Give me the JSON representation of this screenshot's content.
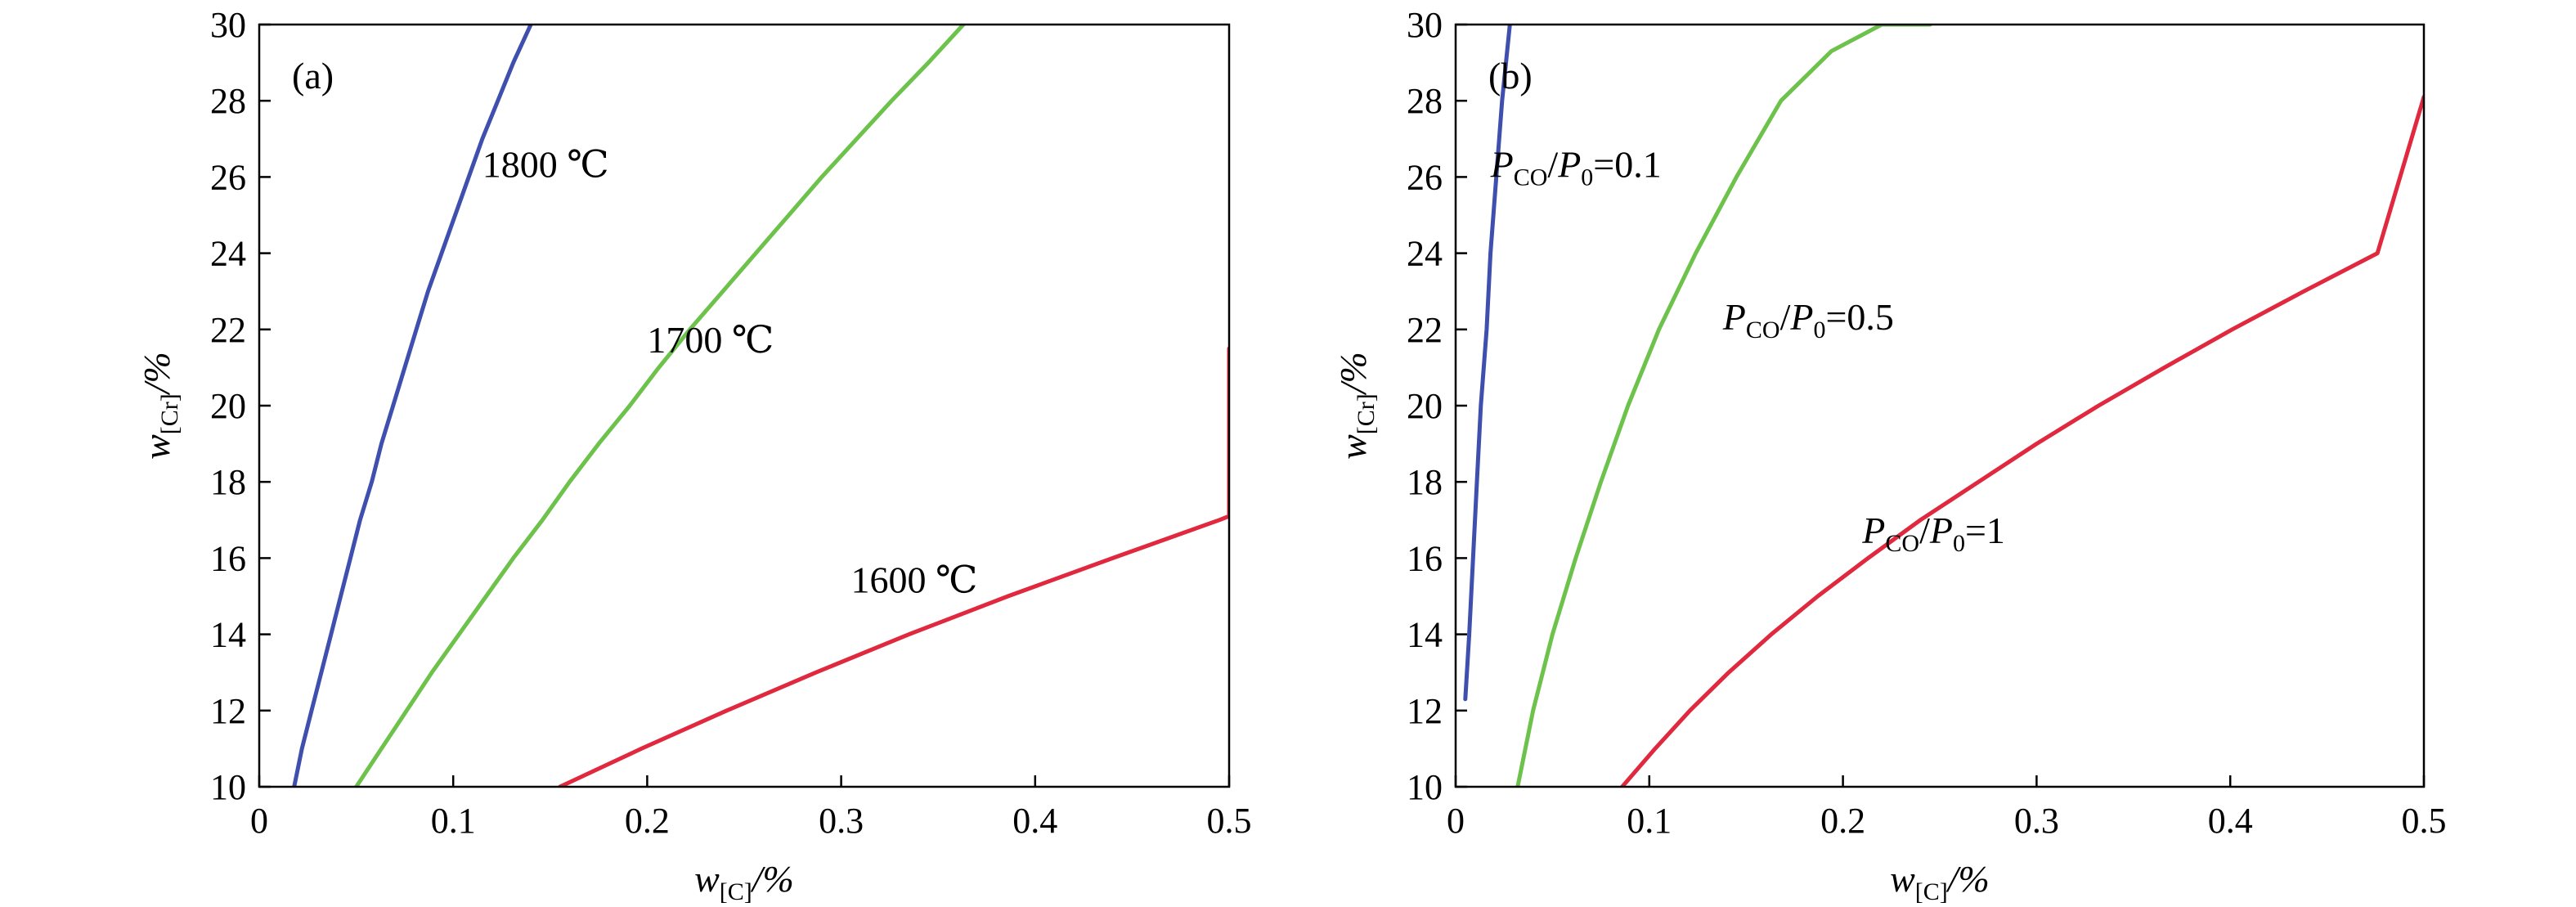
{
  "figure": {
    "colors": {
      "blue": "#3f4fae",
      "green": "#6cc24a",
      "red": "#e0283e"
    }
  },
  "chart_data": [
    {
      "type": "line",
      "panel_label": "(a)",
      "xlabel": {
        "main": "w",
        "sub": "[C]",
        "unit": "/%"
      },
      "ylabel": {
        "main": "w",
        "sub": "[Cr]",
        "unit": "/%"
      },
      "xlim": [
        0,
        0.5
      ],
      "ylim": [
        10,
        30
      ],
      "xticks": [
        0,
        0.1,
        0.2,
        0.3,
        0.4,
        0.5
      ],
      "xtick_labels": [
        "0",
        "0.1",
        "0.2",
        "0.3",
        "0.4",
        "0.5"
      ],
      "yticks": [
        10,
        12,
        14,
        16,
        18,
        20,
        22,
        24,
        26,
        28,
        30
      ],
      "ytick_labels": [
        "10",
        "12",
        "14",
        "16",
        "18",
        "20",
        "22",
        "24",
        "26",
        "28",
        "30"
      ],
      "grid": false,
      "series": [
        {
          "name": "1800 ℃",
          "color": "#3f4fae",
          "label_at": [
            0.115,
            26.0
          ],
          "points": [
            [
              0.018,
              10
            ],
            [
              0.022,
              11
            ],
            [
              0.027,
              12
            ],
            [
              0.032,
              13
            ],
            [
              0.037,
              14
            ],
            [
              0.042,
              15
            ],
            [
              0.047,
              16
            ],
            [
              0.052,
              17
            ],
            [
              0.058,
              18
            ],
            [
              0.063,
              19
            ],
            [
              0.069,
              20
            ],
            [
              0.075,
              21
            ],
            [
              0.081,
              22
            ],
            [
              0.087,
              23
            ],
            [
              0.094,
              24
            ],
            [
              0.101,
              25
            ],
            [
              0.108,
              26
            ],
            [
              0.115,
              27
            ],
            [
              0.123,
              28
            ],
            [
              0.131,
              29
            ],
            [
              0.14,
              30
            ]
          ]
        },
        {
          "name": "1700 ℃",
          "color": "#6cc24a",
          "label_at": [
            0.2,
            21.4
          ],
          "points": [
            [
              0.05,
              10
            ],
            [
              0.063,
              11
            ],
            [
              0.076,
              12
            ],
            [
              0.089,
              13
            ],
            [
              0.103,
              14
            ],
            [
              0.117,
              15
            ],
            [
              0.131,
              16
            ],
            [
              0.146,
              17
            ],
            [
              0.16,
              18
            ],
            [
              0.175,
              19
            ],
            [
              0.191,
              20
            ],
            [
              0.206,
              21
            ],
            [
              0.222,
              22
            ],
            [
              0.239,
              23
            ],
            [
              0.256,
              24
            ],
            [
              0.273,
              25
            ],
            [
              0.29,
              26
            ],
            [
              0.308,
              27
            ],
            [
              0.326,
              28
            ],
            [
              0.345,
              29
            ],
            [
              0.363,
              30
            ]
          ]
        },
        {
          "name": "1600 ℃",
          "color": "#e0283e",
          "label_at": [
            0.305,
            15.1
          ],
          "points": [
            [
              0.155,
              10
            ],
            [
              0.197,
              11
            ],
            [
              0.241,
              12
            ],
            [
              0.287,
              13
            ],
            [
              0.335,
              14
            ],
            [
              0.386,
              15
            ],
            [
              0.44,
              16
            ],
            [
              0.495,
              17
            ],
            [
              0.5,
              17.1
            ],
            [
              0.5,
              21.5
            ]
          ]
        }
      ]
    },
    {
      "type": "line",
      "panel_label": "(b)",
      "xlabel": {
        "main": "w",
        "sub": "[C]",
        "unit": "/%"
      },
      "ylabel": {
        "main": "w",
        "sub": "[Cr]",
        "unit": "/%"
      },
      "xlim": [
        0,
        0.5
      ],
      "ylim": [
        10,
        30
      ],
      "xticks": [
        0,
        0.1,
        0.2,
        0.3,
        0.4,
        0.5
      ],
      "xtick_labels": [
        "0",
        "0.1",
        "0.2",
        "0.3",
        "0.4",
        "0.5"
      ],
      "yticks": [
        10,
        12,
        14,
        16,
        18,
        20,
        22,
        24,
        26,
        28,
        30
      ],
      "ytick_labels": [
        "10",
        "12",
        "14",
        "16",
        "18",
        "20",
        "22",
        "24",
        "26",
        "28",
        "30"
      ],
      "grid": false,
      "series": [
        {
          "name": "P_CO/P_0=0.1",
          "label": {
            "p": "P",
            "sub1": "CO",
            "mid": "/P",
            "sub2": "0",
            "tail": "=0.1"
          },
          "color": "#3f4fae",
          "label_at": [
            0.018,
            26.0
          ],
          "points": [
            [
              0.005,
              12.3
            ],
            [
              0.007,
              14
            ],
            [
              0.009,
              16
            ],
            [
              0.011,
              18
            ],
            [
              0.013,
              20
            ],
            [
              0.016,
              22
            ],
            [
              0.018,
              24
            ],
            [
              0.021,
              26
            ],
            [
              0.024,
              28
            ],
            [
              0.028,
              30
            ]
          ]
        },
        {
          "name": "P_CO/P_0=0.5",
          "label": {
            "p": "P",
            "sub1": "CO",
            "mid": "/P",
            "sub2": "0",
            "tail": "=0.5"
          },
          "color": "#6cc24a",
          "label_at": [
            0.138,
            22.0
          ],
          "points": [
            [
              0.032,
              10
            ],
            [
              0.04,
              12
            ],
            [
              0.05,
              14
            ],
            [
              0.062,
              16
            ],
            [
              0.075,
              18
            ],
            [
              0.089,
              20
            ],
            [
              0.105,
              22
            ],
            [
              0.124,
              24
            ],
            [
              0.145,
              26
            ],
            [
              0.168,
              28
            ],
            [
              0.194,
              29.3
            ],
            [
              0.22,
              30
            ],
            [
              0.245,
              30
            ]
          ]
        },
        {
          "name": "P_CO/P_0=1",
          "label": {
            "p": "P",
            "sub1": "CO",
            "mid": "/P",
            "sub2": "0",
            "tail": "=1"
          },
          "color": "#e0283e",
          "label_at": [
            0.21,
            16.4
          ],
          "points": [
            [
              0.086,
              10
            ],
            [
              0.103,
              11
            ],
            [
              0.121,
              12
            ],
            [
              0.141,
              13
            ],
            [
              0.163,
              14
            ],
            [
              0.187,
              15
            ],
            [
              0.213,
              16
            ],
            [
              0.24,
              17
            ],
            [
              0.27,
              18
            ],
            [
              0.3,
              19
            ],
            [
              0.332,
              20
            ],
            [
              0.366,
              21
            ],
            [
              0.401,
              22
            ],
            [
              0.438,
              23
            ],
            [
              0.476,
              24
            ],
            [
              0.5,
              28.1
            ]
          ]
        }
      ]
    }
  ]
}
